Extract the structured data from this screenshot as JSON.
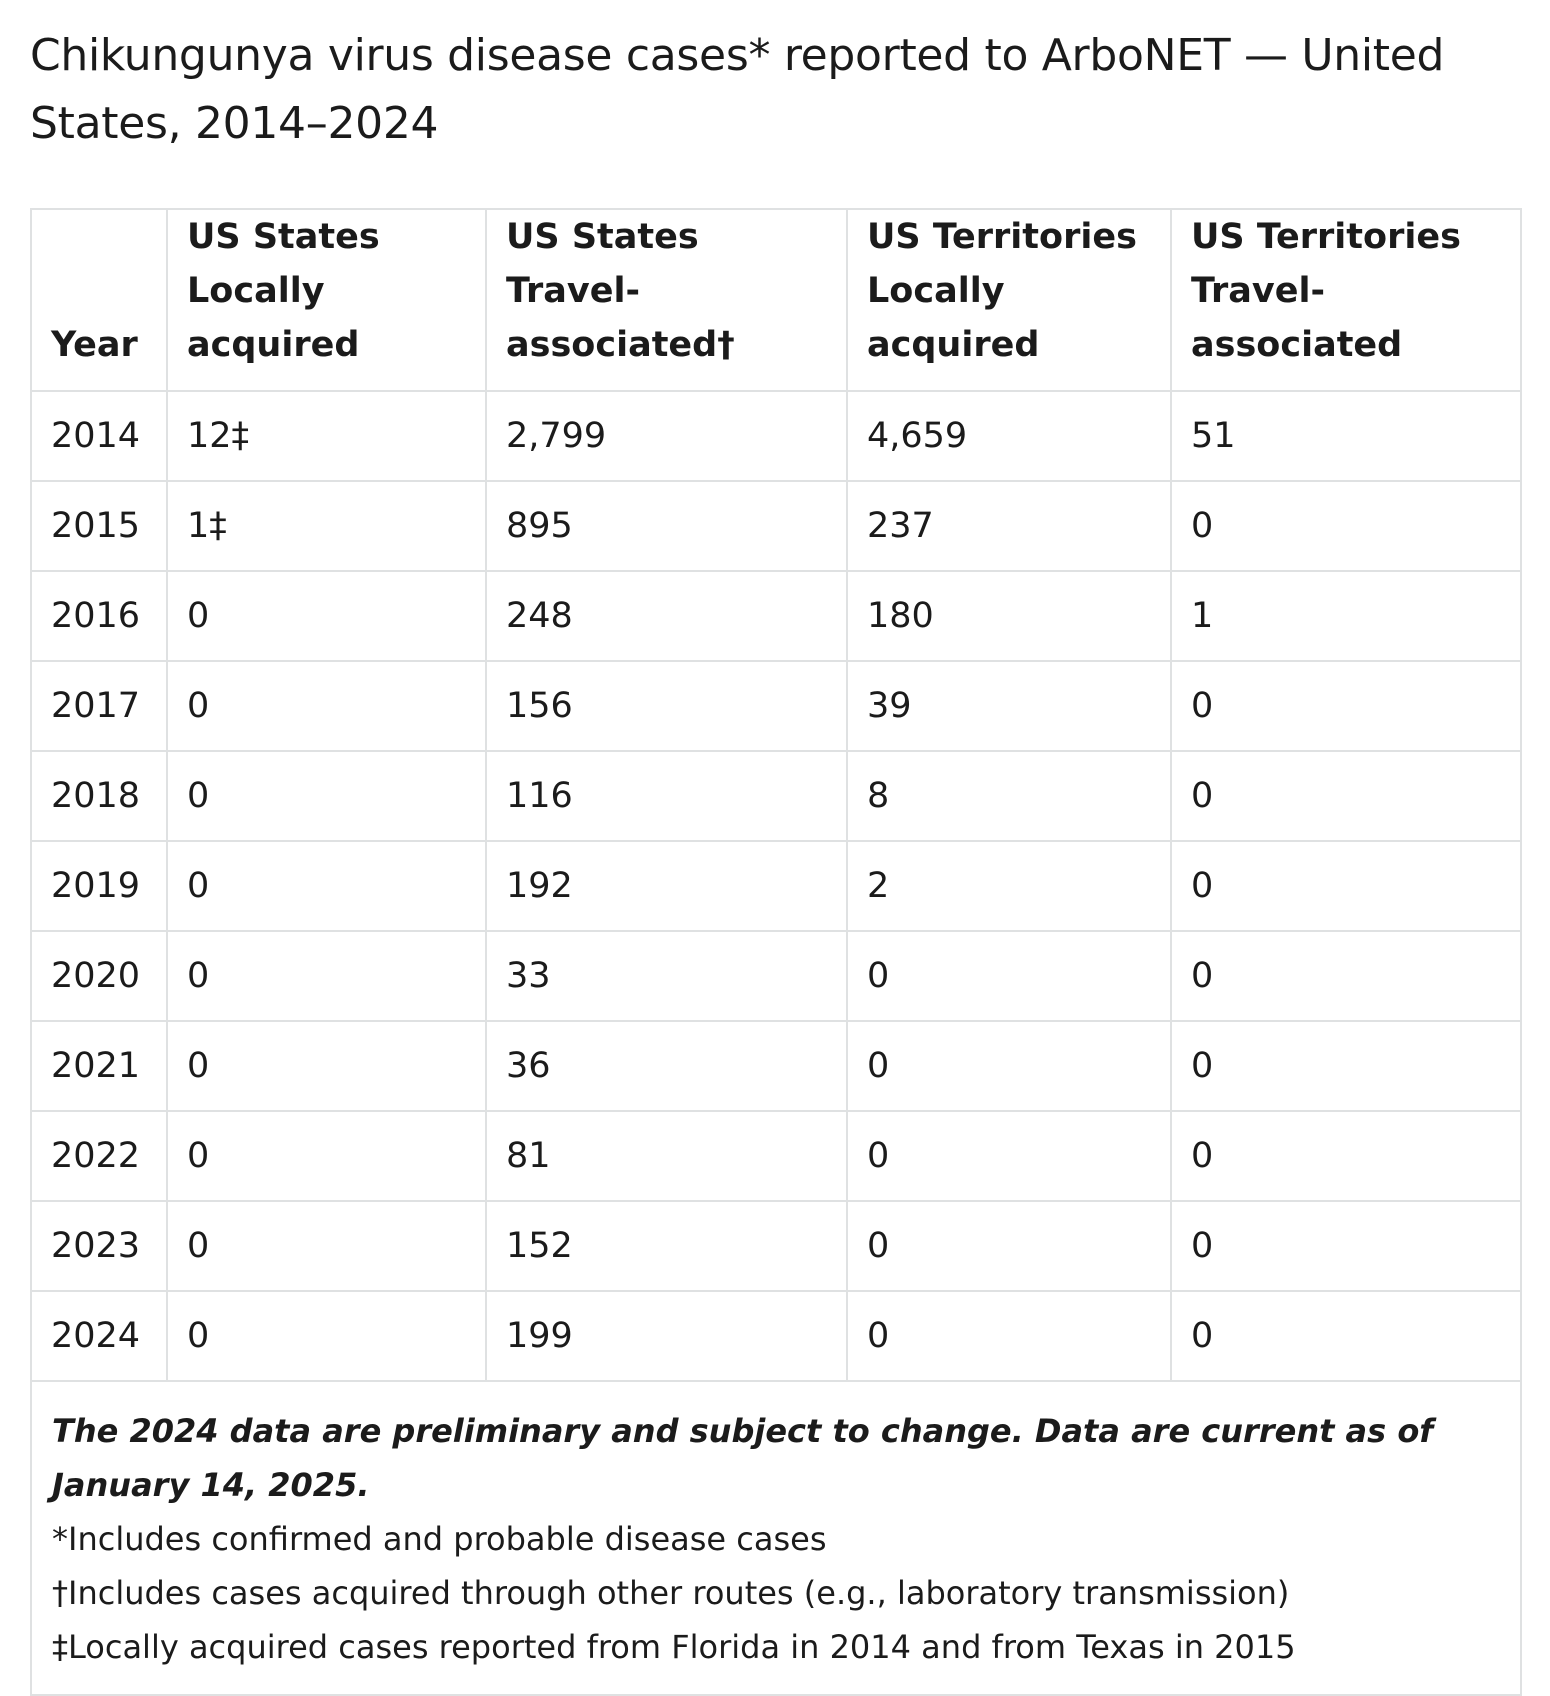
{
  "title": "Chikungunya virus disease cases* reported to ArboNET — United States, 2014–2024",
  "table": {
    "headers": [
      {
        "line1": "",
        "line2": "Year"
      },
      {
        "line1": "US States",
        "line2": "Locally acquired"
      },
      {
        "line1": "US States",
        "line2": "Travel-associated†"
      },
      {
        "line1": "US Territories",
        "line2": "Locally acquired"
      },
      {
        "line1": "US Territories",
        "line2": "Travel-associated"
      }
    ],
    "rows": [
      [
        "2014",
        "12‡",
        "2,799",
        "4,659",
        "51"
      ],
      [
        "2015",
        "1‡",
        "895",
        "237",
        "0"
      ],
      [
        "2016",
        "0",
        "248",
        "180",
        "1"
      ],
      [
        "2017",
        "0",
        "156",
        "39",
        "0"
      ],
      [
        "2018",
        "0",
        "116",
        "8",
        "0"
      ],
      [
        "2019",
        "0",
        "192",
        "2",
        "0"
      ],
      [
        "2020",
        "0",
        "33",
        "0",
        "0"
      ],
      [
        "2021",
        "0",
        "36",
        "0",
        "0"
      ],
      [
        "2022",
        "0",
        "81",
        "0",
        "0"
      ],
      [
        "2023",
        "0",
        "152",
        "0",
        "0"
      ],
      [
        "2024",
        "0",
        "199",
        "0",
        "0"
      ]
    ]
  },
  "footnotes": {
    "preliminary": "The 2024 data are preliminary and subject to change. Data are current as of January 14, 2025.",
    "note1": "*Includes confirmed and probable disease cases",
    "note2": "†Includes cases acquired through other routes (e.g., laboratory transmission)",
    "note3": "‡Locally acquired cases reported from Florida in 2014 and from Texas in 2015"
  }
}
